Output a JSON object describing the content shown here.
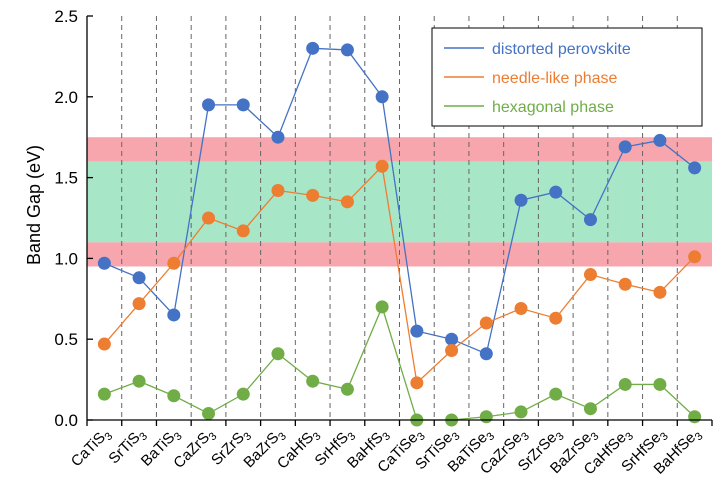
{
  "chart_data": {
    "type": "line",
    "title": "",
    "xlabel": "",
    "ylabel": "Band Gap (eV)",
    "ylim": [
      0,
      2.5
    ],
    "yticks": [
      "0.0",
      "0.5",
      "1.0",
      "1.5",
      "2.0",
      "2.5"
    ],
    "categories": [
      {
        "base": "CaTiS",
        "sub": "3"
      },
      {
        "base": "SrTiS",
        "sub": "3"
      },
      {
        "base": "BaTiS",
        "sub": "3"
      },
      {
        "base": "CaZrS",
        "sub": "3"
      },
      {
        "base": "SrZrS",
        "sub": "3"
      },
      {
        "base": "BaZrS",
        "sub": "3"
      },
      {
        "base": "CaHfS",
        "sub": "3"
      },
      {
        "base": "SrHfS",
        "sub": "3"
      },
      {
        "base": "BaHfS",
        "sub": "3"
      },
      {
        "base": "CaTiSe",
        "sub": "3"
      },
      {
        "base": "SrTiSe",
        "sub": "3"
      },
      {
        "base": "BaTiSe",
        "sub": "3"
      },
      {
        "base": "CaZrSe",
        "sub": "3"
      },
      {
        "base": "SrZrSe",
        "sub": "3"
      },
      {
        "base": "BaZrSe",
        "sub": "3"
      },
      {
        "base": "CaHfSe",
        "sub": "3"
      },
      {
        "base": "SrHfSe",
        "sub": "3"
      },
      {
        "base": "BaHfSe",
        "sub": "3"
      }
    ],
    "bands": [
      {
        "name": "red-band-lower",
        "from": 0.95,
        "to": 1.1,
        "color": "#f7a6ad"
      },
      {
        "name": "green-band",
        "from": 1.1,
        "to": 1.6,
        "color": "#a8e6c8"
      },
      {
        "name": "red-band-upper",
        "from": 1.6,
        "to": 1.75,
        "color": "#f7a6ad"
      }
    ],
    "series": [
      {
        "name": "distorted perovskite",
        "color": "#4472c4",
        "values": [
          0.97,
          0.88,
          0.65,
          1.95,
          1.95,
          1.75,
          2.3,
          2.29,
          2.0,
          0.55,
          0.5,
          0.41,
          1.36,
          1.41,
          1.24,
          1.69,
          1.73,
          1.56
        ]
      },
      {
        "name": "needle-like phase",
        "color": "#ed7d31",
        "values": [
          0.47,
          0.72,
          0.97,
          1.25,
          1.17,
          1.42,
          1.39,
          1.35,
          1.57,
          0.23,
          0.43,
          0.6,
          0.69,
          0.63,
          0.9,
          0.84,
          0.79,
          1.01
        ]
      },
      {
        "name": "hexagonal phase",
        "color": "#70ad47",
        "values": [
          0.16,
          0.24,
          0.15,
          0.04,
          0.16,
          0.41,
          0.24,
          0.19,
          0.7,
          0.0,
          0.0,
          0.02,
          0.05,
          0.16,
          0.07,
          0.22,
          0.22,
          0.02
        ]
      }
    ],
    "legend_position": "top-right",
    "grid": "vertical-dashed"
  }
}
